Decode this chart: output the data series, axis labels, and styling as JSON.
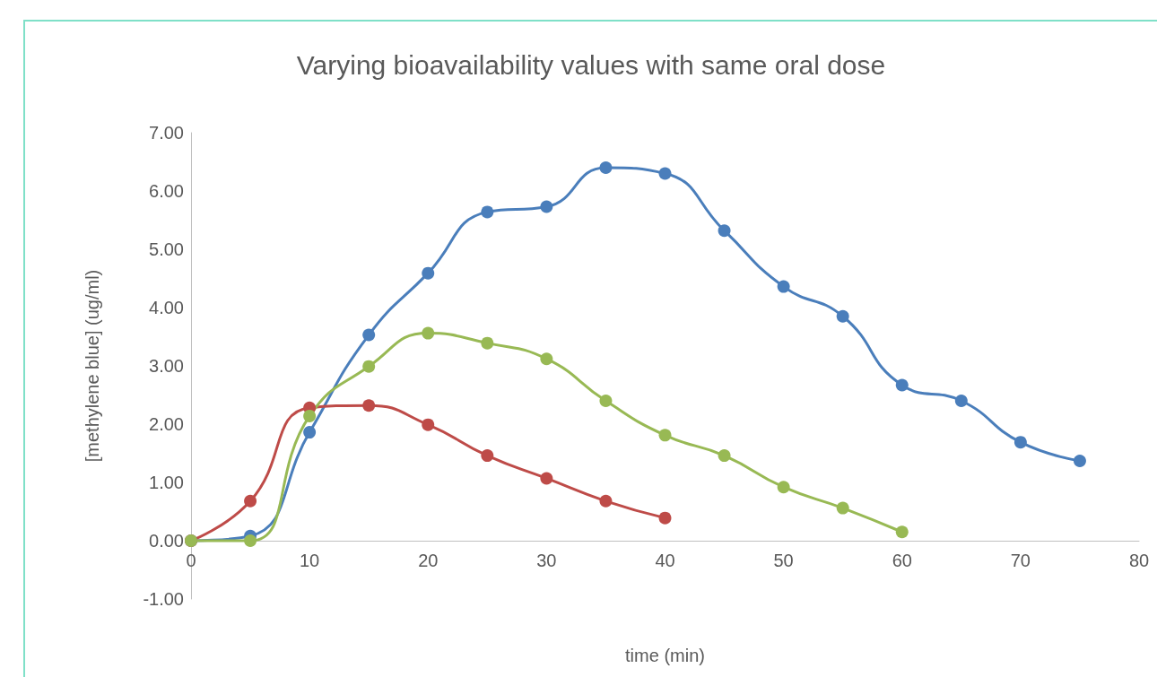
{
  "chart_data": {
    "type": "line",
    "title": "Varying bioavailability values with same oral dose",
    "xlabel": "time (min)",
    "ylabel": "[methylene blue] (ug/ml)",
    "xlim": [
      0,
      80
    ],
    "xticks": [
      0,
      10,
      20,
      30,
      40,
      50,
      60,
      70,
      80
    ],
    "ylim": [
      -1,
      7
    ],
    "yticks": [
      {
        "value": -1,
        "label": "-1.00"
      },
      {
        "value": 0,
        "label": "0.00"
      },
      {
        "value": 1,
        "label": "1.00"
      },
      {
        "value": 2,
        "label": "2.00"
      },
      {
        "value": 3,
        "label": "3.00"
      },
      {
        "value": 4,
        "label": "4.00"
      },
      {
        "value": 5,
        "label": "5.00"
      },
      {
        "value": 6,
        "label": "6.00"
      },
      {
        "value": 7,
        "label": "7.00"
      }
    ],
    "grid": false,
    "marker": "circle",
    "line_style": "solid",
    "series": [
      {
        "color": "#4a7ebb",
        "x": [
          0,
          5,
          10,
          15,
          20,
          25,
          30,
          35,
          40,
          45,
          50,
          55,
          60,
          65,
          70,
          75
        ],
        "values": [
          0,
          0.08,
          1.86,
          3.53,
          4.59,
          5.64,
          5.73,
          6.4,
          6.3,
          5.32,
          4.36,
          3.85,
          2.67,
          2.4,
          1.69,
          1.37
        ]
      },
      {
        "color": "#be4b48",
        "x": [
          0,
          5,
          10,
          15,
          20,
          25,
          30,
          35,
          40
        ],
        "values": [
          0,
          0.68,
          2.28,
          2.32,
          1.99,
          1.46,
          1.07,
          0.68,
          0.39
        ]
      },
      {
        "color": "#98b954",
        "x": [
          0,
          5,
          10,
          15,
          20,
          25,
          30,
          35,
          40,
          45,
          50,
          55,
          60
        ],
        "values": [
          0,
          0,
          2.14,
          2.99,
          3.56,
          3.39,
          3.12,
          2.4,
          1.81,
          1.46,
          0.92,
          0.56,
          0.15
        ]
      }
    ]
  }
}
